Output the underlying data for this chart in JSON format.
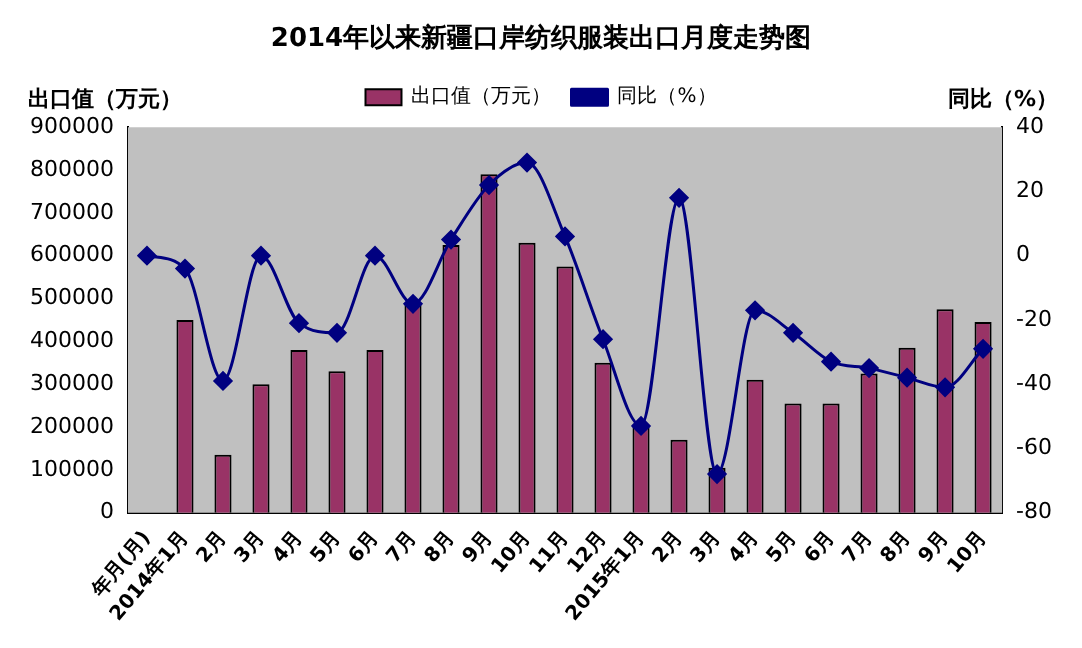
{
  "chart_data": {
    "type": "bar",
    "title": "2014年以来新疆口岸纺织服装出口月度走势图",
    "ylabel": "出口值（万元）",
    "y2label": "同比（%）",
    "categories": [
      "年月(月)",
      "2014年1月",
      "2月",
      "3月",
      "4月",
      "5月",
      "6月",
      "7月",
      "8月",
      "9月",
      "10月",
      "11月",
      "12月",
      "2015年1月",
      "2月",
      "3月",
      "4月",
      "5月",
      "6月",
      "7月",
      "8月",
      "9月",
      "10月"
    ],
    "series": [
      {
        "name": "出口值（万元）",
        "color": "#993366",
        "values": [
          null,
          450000,
          135000,
          300000,
          380000,
          330000,
          380000,
          490000,
          625000,
          790000,
          630000,
          575000,
          350000,
          205000,
          170000,
          105000,
          310000,
          255000,
          255000,
          325000,
          385000,
          475000,
          445000
        ]
      },
      {
        "name": "同比（%）",
        "type": "line",
        "axis": "y2",
        "color": "#000080",
        "marker": "diamond",
        "values": [
          0,
          -4,
          -39,
          0,
          -21,
          -24,
          0,
          -15,
          5,
          22,
          29,
          6,
          -26,
          -53,
          18,
          -68,
          -17,
          -24,
          -33,
          -35,
          -38,
          -41,
          -29
        ]
      }
    ],
    "ylim": [
      0,
      900000
    ],
    "yticks": [
      0,
      100000,
      200000,
      300000,
      400000,
      500000,
      600000,
      700000,
      800000,
      900000
    ],
    "y2lim": [
      -80,
      40
    ],
    "y2ticks": [
      -80,
      -60,
      -40,
      -20,
      0,
      20,
      40
    ],
    "grid": false,
    "legend": "top"
  }
}
